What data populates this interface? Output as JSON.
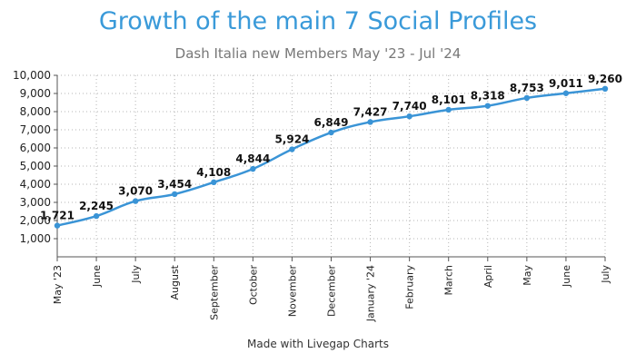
{
  "chart_data": {
    "type": "line",
    "title": "Growth of the main 7 Social Profiles",
    "subtitle": "Dash Italia new Members May '23 - Jul '24",
    "categories": [
      "May '23",
      "June",
      "July",
      "August",
      "September",
      "October",
      "November",
      "December",
      "January '24",
      "February",
      "March",
      "April",
      "May",
      "June",
      "July"
    ],
    "series": [
      {
        "values": [
          1721,
          2245,
          3070,
          3454,
          4108,
          4844,
          5924,
          6849,
          7427,
          7740,
          8101,
          8318,
          8753,
          9011,
          9260
        ],
        "labels": [
          "1,721",
          "2,245",
          "3,070",
          "3,454",
          "4,108",
          "4,844",
          "5,924",
          "6,849",
          "7,427",
          "7,740",
          "8,101",
          "8,318",
          "8,753",
          "9,011",
          "9,260"
        ]
      }
    ],
    "ylim": [
      0,
      10000
    ],
    "yticks": [
      1000,
      2000,
      3000,
      4000,
      5000,
      6000,
      7000,
      8000,
      9000,
      10000
    ],
    "ytick_labels": [
      "1,000",
      "2,000",
      "3,000",
      "4,000",
      "5,000",
      "6,000",
      "7,000",
      "8,000",
      "9,000",
      "10,000"
    ],
    "grid": true,
    "line_color": "#3a94d6",
    "title_color": "#3a9ad9"
  },
  "footer": "Made with Livegap Charts"
}
